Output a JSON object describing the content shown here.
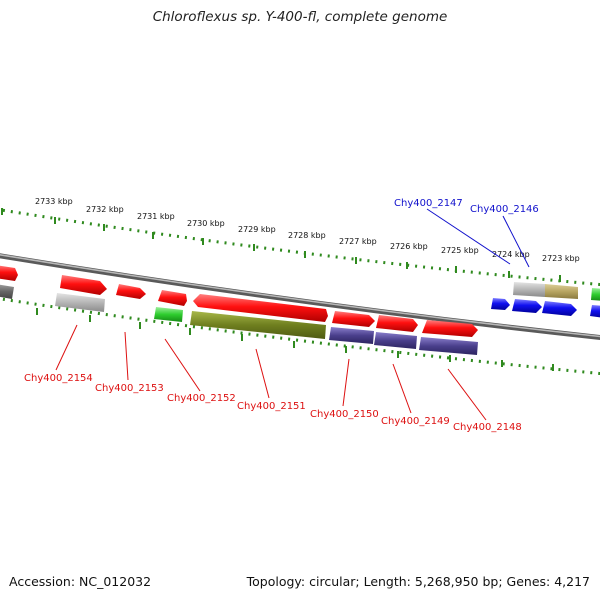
{
  "title": "Chloroflexus sp. Y-400-fl, complete genome",
  "scale_labels": [
    "2733 kbp",
    "2732 kbp",
    "2731 kbp",
    "2730 kbp",
    "2729 kbp",
    "2728 kbp",
    "2727 kbp",
    "2726 kbp",
    "2725 kbp",
    "2724 kbp",
    "2723 kbp"
  ],
  "gene_labels_top": [
    "Chy400_2147",
    "Chy400_2146"
  ],
  "gene_labels_bottom": [
    "Chy400_2154",
    "Chy400_2153",
    "Chy400_2152",
    "Chy400_2151",
    "Chy400_2150",
    "Chy400_2149",
    "Chy400_2148"
  ],
  "colors": {
    "backbone": "#7a7a7a",
    "ticks": "#2f8a1e",
    "forward_gene": "#ff1414",
    "selected_label_bottom": "#dd1111",
    "selected_label_top": "#1111cc",
    "blue_gene": "#1414f0",
    "grey_gene": "#b4b4b4",
    "green_gene": "#2ecc2e",
    "olive_gene": "#6f7f1f",
    "purple_gene": "#4a3f8c",
    "khaki_gene": "#b7a562"
  },
  "footer": {
    "accession": "Accession: NC_012032",
    "stats": "Topology: circular; Length: 5,268,950 bp; Genes: 4,217"
  }
}
